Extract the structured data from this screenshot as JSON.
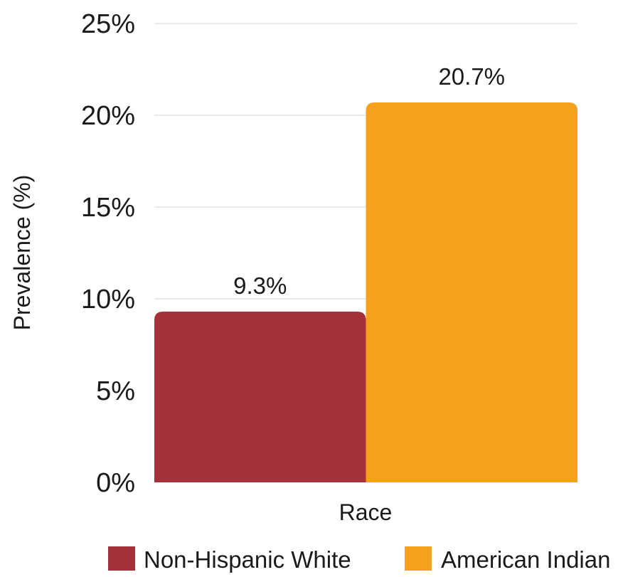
{
  "chart_data": {
    "type": "bar",
    "categories": [
      "Race"
    ],
    "series": [
      {
        "name": "Non-Hispanic White",
        "values": [
          9.3
        ],
        "color": "#a5323a",
        "label": "9.3%"
      },
      {
        "name": "American Indian",
        "values": [
          20.7
        ],
        "color": "#f5a11e",
        "label": "20.7%"
      }
    ],
    "xlabel": "Race",
    "ylabel": "Prevalence (%)",
    "ylim": [
      0,
      25
    ],
    "yticks": [
      0,
      5,
      10,
      15,
      20,
      25
    ],
    "ytick_labels": [
      "0%",
      "5%",
      "10%",
      "15%",
      "20%",
      "25%"
    ],
    "grid": true,
    "legend_position": "bottom"
  }
}
